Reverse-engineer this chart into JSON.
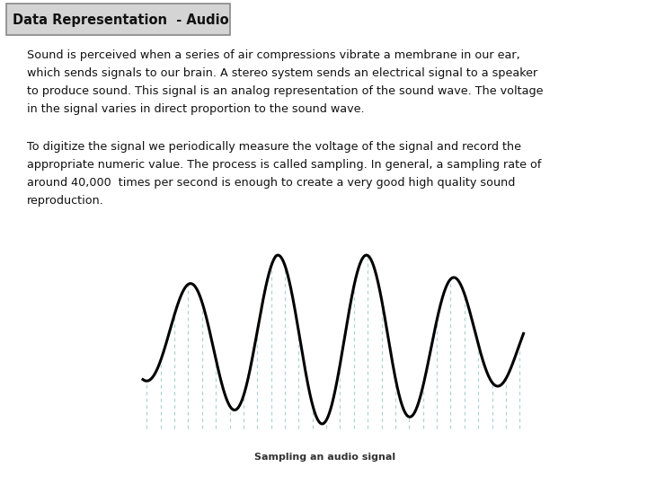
{
  "title": "Data Representation  - Audio",
  "bg_color": "#ffffff",
  "title_box_bg": "#d4d4d4",
  "title_box_border": "#888888",
  "title_fontsize": 10.5,
  "body_fontsize": 9.2,
  "caption": "Sampling an audio signal",
  "caption_fontsize": 8.0,
  "para1_lines": [
    "Sound is perceived when a series of air compressions vibrate a membrane in our ear,",
    "which sends signals to our brain. A stereo system sends an electrical signal to a speaker",
    "to produce sound. This signal is an analog representation of the sound wave. The voltage",
    "in the signal varies in direct proportion to the sound wave."
  ],
  "para2_lines": [
    "To digitize the signal we periodically measure the voltage of the signal and record the",
    "appropriate numeric value. The process is called sampling. In general, a sampling rate of",
    "around 40,000  times per second is enough to create a very good high quality sound",
    "reproduction."
  ],
  "wave_color": "#000000",
  "grid_color": "#6ab0b0",
  "wave_lw": 2.2,
  "grid_alpha": 0.55,
  "grid_lw": 0.9
}
